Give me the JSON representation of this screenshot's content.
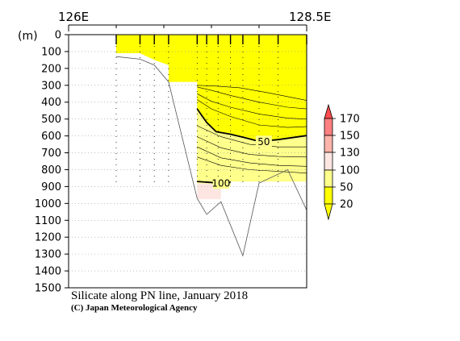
{
  "chart_data": {
    "type": "contour-section",
    "title": "Silicate along PN line, January 2018",
    "credit": "(C) Japan Meteorological Agency",
    "x_axis": {
      "left_label": "126E",
      "right_label": "128.5E",
      "range": [
        126.0,
        128.5
      ]
    },
    "y_axis": {
      "unit_label": "(m)",
      "range": [
        0,
        1500
      ],
      "ticks": [
        0,
        100,
        200,
        300,
        400,
        500,
        600,
        700,
        800,
        900,
        1000,
        1100,
        1200,
        1300,
        1400,
        1500
      ],
      "inverted": true
    },
    "station_longitudes": [
      126.5,
      126.75,
      126.9,
      127.05,
      127.35,
      127.45,
      127.57,
      127.7,
      127.83,
      128.0,
      128.2,
      128.5
    ],
    "contour_labels": [
      {
        "value": "50",
        "lon": 128.05,
        "depth": 632
      },
      {
        "value": "100",
        "lon": 127.6,
        "depth": 880
      }
    ],
    "colorbar": {
      "levels": [
        "170",
        "150",
        "130",
        "100",
        "50",
        "20"
      ],
      "colors": [
        "#ff4d4d",
        "#ff8080",
        "#ffb4aa",
        "#fde6e1",
        "#ffff8c",
        "#ffff00"
      ]
    },
    "bottom_profile": [
      {
        "lon": 126.5,
        "depth": 130
      },
      {
        "lon": 126.75,
        "depth": 145
      },
      {
        "lon": 126.9,
        "depth": 180
      },
      {
        "lon": 127.05,
        "depth": 280
      },
      {
        "lon": 127.35,
        "depth": 970
      },
      {
        "lon": 127.45,
        "depth": 1065
      },
      {
        "lon": 127.6,
        "depth": 990
      },
      {
        "lon": 127.83,
        "depth": 1310
      },
      {
        "lon": 128.0,
        "depth": 880
      },
      {
        "lon": 128.3,
        "depth": 800
      },
      {
        "lon": 128.5,
        "depth": 1040
      }
    ]
  }
}
